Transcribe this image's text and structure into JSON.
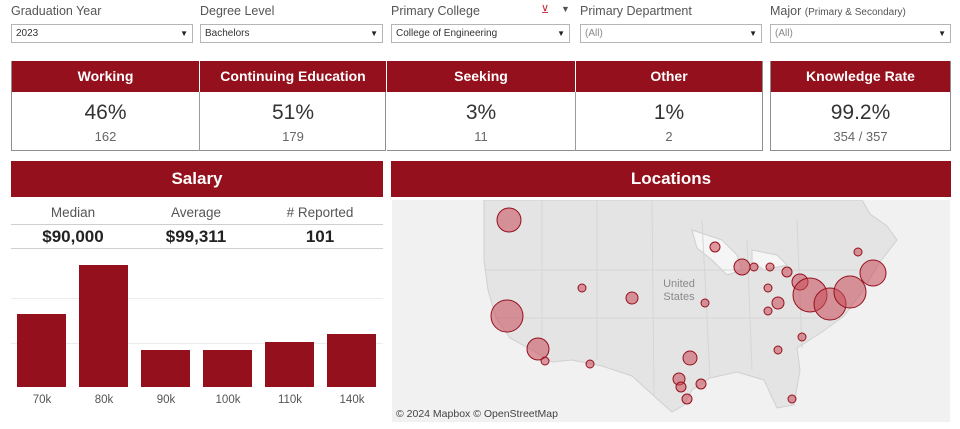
{
  "filters": [
    {
      "label": "Graduation Year",
      "value": "2023"
    },
    {
      "label": "Degree Level",
      "value": "Bachelors"
    },
    {
      "label": "Primary College",
      "value": "College of Engineering"
    },
    {
      "label": "Primary Department",
      "value": "(All)"
    },
    {
      "label": "Major",
      "label_small": "(Primary & Secondary)",
      "value": "(All)"
    }
  ],
  "kpis": [
    {
      "title": "Working",
      "percent": "46%",
      "count": "162"
    },
    {
      "title": "Continuing Education",
      "percent": "51%",
      "count": "179"
    },
    {
      "title": "Seeking",
      "percent": "3%",
      "count": "11"
    },
    {
      "title": "Other",
      "percent": "1%",
      "count": "2"
    }
  ],
  "knowledge_rate": {
    "title": "Knowledge Rate",
    "percent": "99.2%",
    "ratio": "354 / 357"
  },
  "salary": {
    "title": "Salary",
    "stats": [
      {
        "label": "Median",
        "value": "$90,000"
      },
      {
        "label": "Average",
        "value": "$99,311"
      },
      {
        "label": "# Reported",
        "value": "101"
      }
    ]
  },
  "chart_data": {
    "type": "bar",
    "categories": [
      "70k",
      "80k",
      "90k",
      "100k",
      "110k",
      "140k"
    ],
    "values": [
      18,
      30,
      9,
      9,
      11,
      13
    ],
    "title": "",
    "xlabel": "",
    "ylabel": ""
  },
  "locations": {
    "title": "Locations",
    "map_label": "United\nStates",
    "attribution": "© 2024 Mapbox  © OpenStreetMap"
  },
  "colors": {
    "accent": "#94101c",
    "bubble_fill": "#c94b58",
    "bubble_stroke": "#94101c"
  },
  "icons": {
    "clear_filter": "clear-filter-icon",
    "menu": "dropdown-menu-icon"
  }
}
